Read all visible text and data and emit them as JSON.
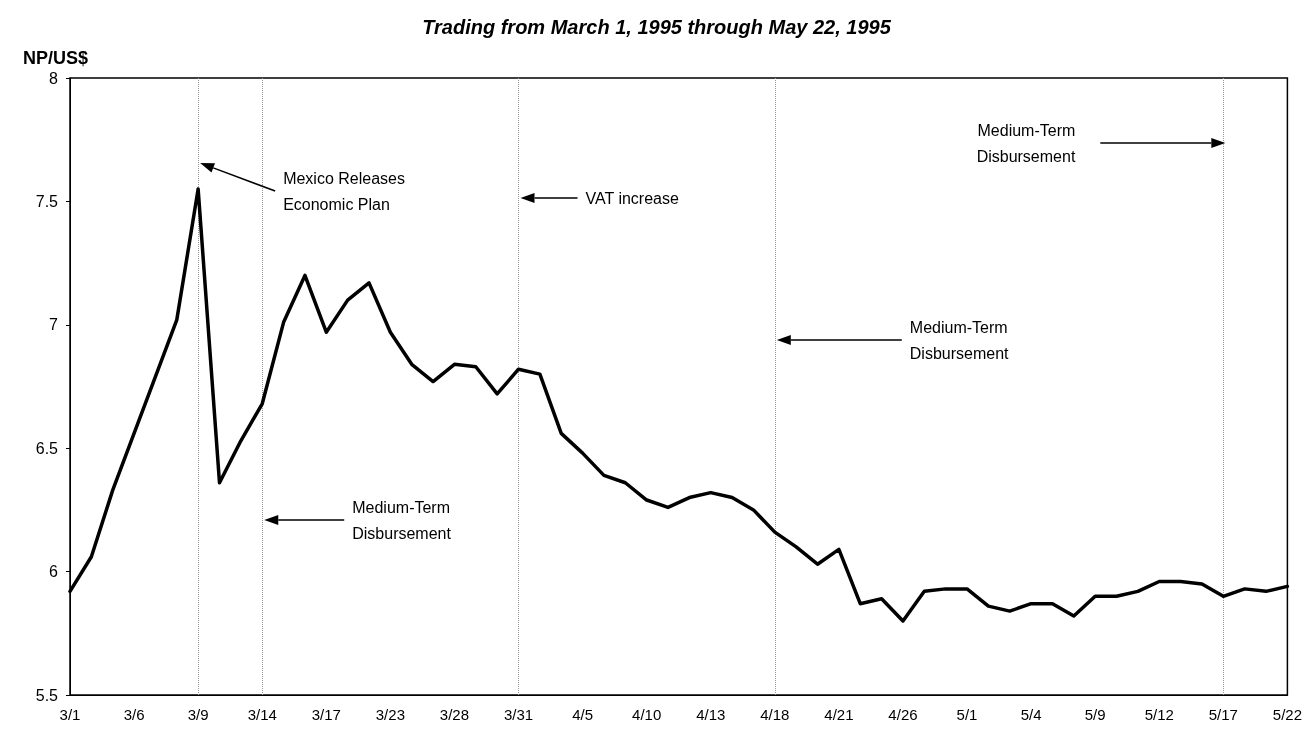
{
  "chart_data": {
    "type": "line",
    "title": "Trading from March 1, 1995 through May 22, 1995",
    "ylabel": "NP/US$",
    "categories": [
      "3/1",
      null,
      null,
      "3/6",
      null,
      null,
      "3/9",
      null,
      null,
      "3/14",
      null,
      null,
      "3/17",
      null,
      null,
      "3/23",
      null,
      null,
      "3/28",
      null,
      null,
      "3/31",
      null,
      null,
      "4/5",
      null,
      null,
      "4/10",
      null,
      null,
      "4/13",
      null,
      null,
      "4/18",
      null,
      null,
      "4/21",
      null,
      null,
      "4/26",
      null,
      null,
      "5/1",
      null,
      null,
      "5/4",
      null,
      null,
      "5/9",
      null,
      null,
      "5/12",
      null,
      null,
      "5/17",
      null,
      null,
      "5/22"
    ],
    "series": [
      {
        "color": "#000000",
        "values": [
          5.92,
          6.06,
          6.33,
          6.56,
          6.79,
          7.02,
          7.55,
          6.36,
          6.53,
          6.68,
          7.01,
          7.2,
          6.97,
          7.1,
          7.17,
          6.97,
          6.84,
          6.77,
          6.84,
          6.83,
          6.72,
          6.82,
          6.8,
          6.56,
          6.48,
          6.39,
          6.36,
          6.29,
          6.26,
          6.3,
          6.32,
          6.3,
          6.25,
          6.16,
          6.1,
          6.03,
          6.09,
          5.87,
          5.89,
          5.8,
          5.92,
          5.93,
          5.93,
          5.86,
          5.84,
          5.87,
          5.87,
          5.82,
          5.9,
          5.9,
          5.92,
          5.96,
          5.96,
          5.95,
          5.9,
          5.93,
          5.92,
          5.94
        ]
      }
    ],
    "ylim": [
      5.5,
      8
    ],
    "yticks": [
      5.5,
      6,
      6.5,
      7,
      7.5,
      8
    ],
    "grid": false,
    "marker": "none",
    "line_style": "solid",
    "ref_lines": [
      {
        "axis": "x",
        "value": "3/9",
        "color": "#999999",
        "line_style": "dotted"
      },
      {
        "axis": "x",
        "value": "3/14",
        "color": "#999999",
        "line_style": "dotted"
      },
      {
        "axis": "x",
        "value": "3/31",
        "color": "#999999",
        "line_style": "dotted"
      },
      {
        "axis": "x",
        "value": "4/18",
        "color": "#999999",
        "line_style": "dotted"
      },
      {
        "axis": "x",
        "value": "5/17",
        "color": "#999999",
        "line_style": "dotted"
      }
    ],
    "annotations": [
      "Mexico Releases\nEconomic Plan",
      "Medium-Term\nDisbursement",
      "VAT increase",
      "Medium-Term\nDisbursement",
      "Medium-Term\nDisbursement"
    ]
  }
}
